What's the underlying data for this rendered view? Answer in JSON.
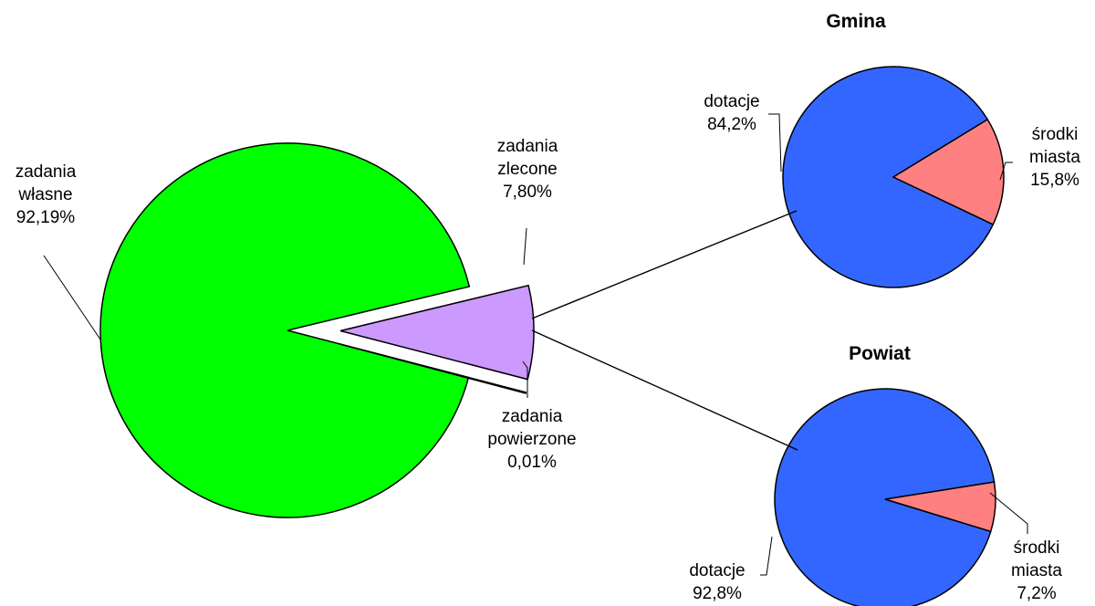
{
  "chart_data": [
    {
      "type": "pie",
      "title": "",
      "slices": [
        {
          "label_lines": [
            "zadania",
            "własne"
          ],
          "value_text": "92,19%",
          "value": 92.19,
          "color": "#00FF00"
        },
        {
          "label_lines": [
            "zadania",
            "zlecone"
          ],
          "value_text": "7,80%",
          "value": 7.8,
          "color": "#CC99FF"
        },
        {
          "label_lines": [
            "zadania",
            "powierzone"
          ],
          "value_text": "0,01%",
          "value": 0.01,
          "color": "#FFFFFF"
        }
      ]
    },
    {
      "type": "pie",
      "title": "Gmina",
      "slices": [
        {
          "label_lines": [
            "dotacje"
          ],
          "value_text": "84,2%",
          "value": 84.2,
          "color": "#3366FF"
        },
        {
          "label_lines": [
            "środki",
            "miasta"
          ],
          "value_text": "15,8%",
          "value": 15.8,
          "color": "#FF8080"
        }
      ]
    },
    {
      "type": "pie",
      "title": "Powiat",
      "slices": [
        {
          "label_lines": [
            "dotacje"
          ],
          "value_text": "92,8%",
          "value": 92.8,
          "color": "#3366FF"
        },
        {
          "label_lines": [
            "środki",
            "miasta"
          ],
          "value_text": "7,2%",
          "value": 7.2,
          "color": "#FF8080"
        }
      ]
    }
  ]
}
